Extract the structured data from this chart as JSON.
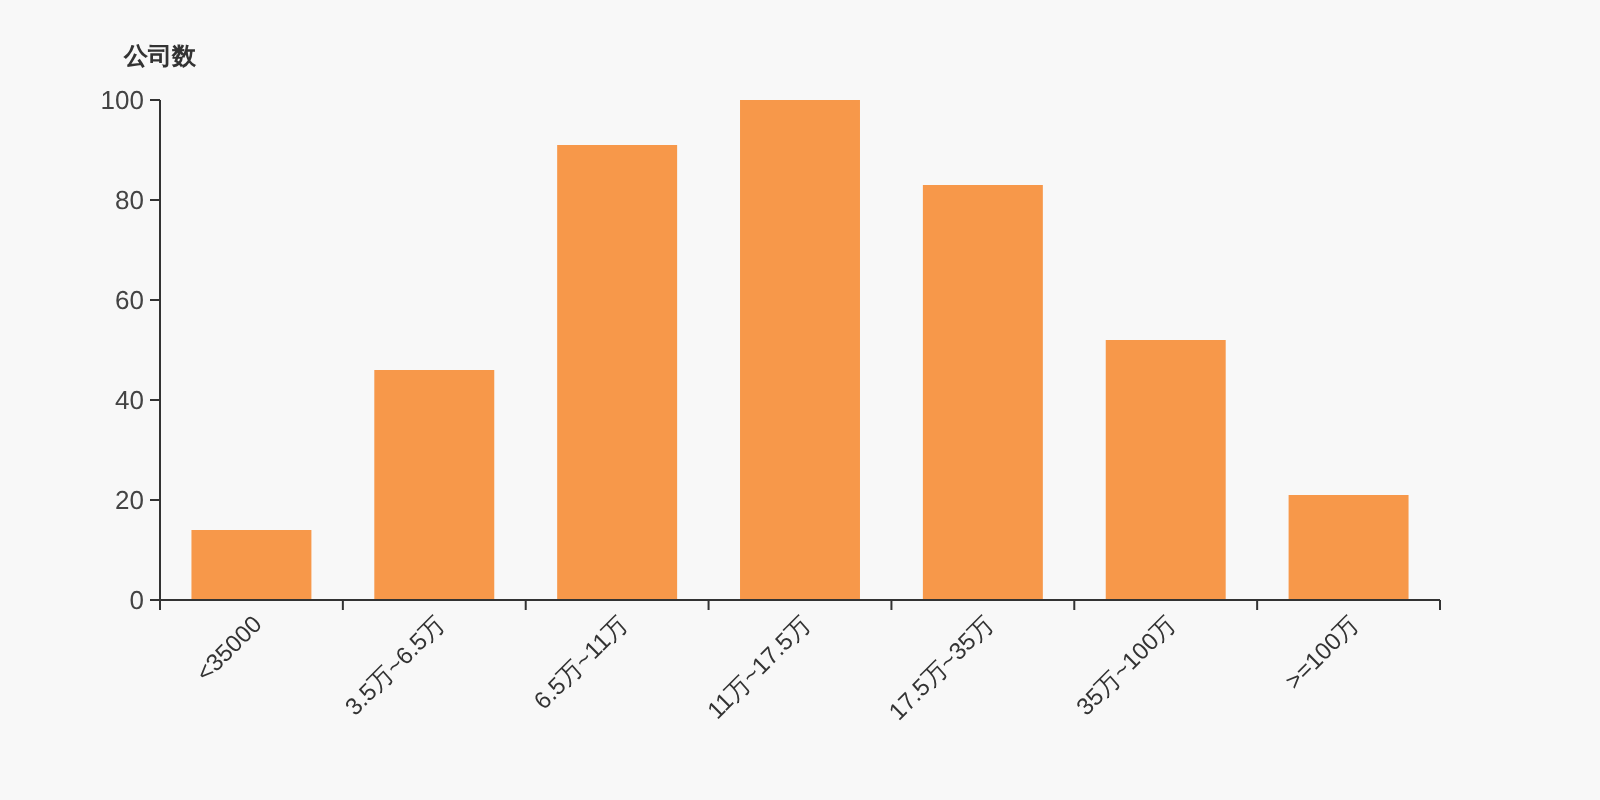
{
  "chart_data": {
    "type": "bar",
    "ylabel": "公司数",
    "categories": [
      "<35000",
      "3.5万~6.5万",
      "6.5万~11万",
      "11万~17.5万",
      "17.5万~35万",
      "35万~100万",
      ">=100万"
    ],
    "values": [
      14,
      46,
      91,
      100,
      83,
      52,
      21
    ],
    "color": "#f7984a",
    "ylim": [
      0,
      100
    ],
    "yticks": [
      0,
      20,
      40,
      60,
      80,
      100
    ]
  }
}
